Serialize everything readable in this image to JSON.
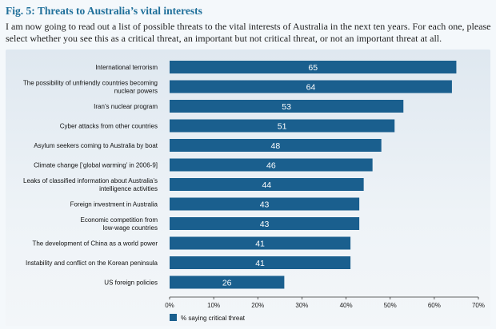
{
  "header": {
    "title": "Fig. 5:  Threats to Australia’s vital interests",
    "question": "I am now going to read out a list of possible threats to the vital interests of Australia in the next ten years. For each one, please select whether you see this as a critical threat, an important but not critical threat, or not an important threat at all."
  },
  "chart_data": {
    "type": "bar",
    "orientation": "horizontal",
    "categories": [
      [
        "International terrorism"
      ],
      [
        "The possibility of unfriendly countries becoming",
        "nuclear powers"
      ],
      [
        "Iran’s nuclear program"
      ],
      [
        "Cyber attacks from other countries"
      ],
      [
        "Asylum seekers coming to Australia by boat"
      ],
      [
        "Climate change [‘global warming’ in 2006-9]"
      ],
      [
        "Leaks of classified information about Australia’s",
        "intelligence activities"
      ],
      [
        "Foreign investment in Australia"
      ],
      [
        "Economic competition from",
        "low-wage countries"
      ],
      [
        "The development of China as a world power"
      ],
      [
        "Instability and conflict on the Korean peninsula"
      ],
      [
        "US foreign policies"
      ]
    ],
    "series": [
      {
        "name": "% saying critical threat",
        "values": [
          65,
          64,
          53,
          51,
          48,
          46,
          44,
          43,
          43,
          41,
          41,
          26
        ]
      }
    ],
    "xlim": [
      0,
      70
    ],
    "xticks": [
      "0%",
      "10%",
      "20%",
      "30%",
      "40%",
      "50%",
      "60%",
      "70%"
    ],
    "legend_position": "bottom-left",
    "bar_color": "#1a5f8e"
  }
}
